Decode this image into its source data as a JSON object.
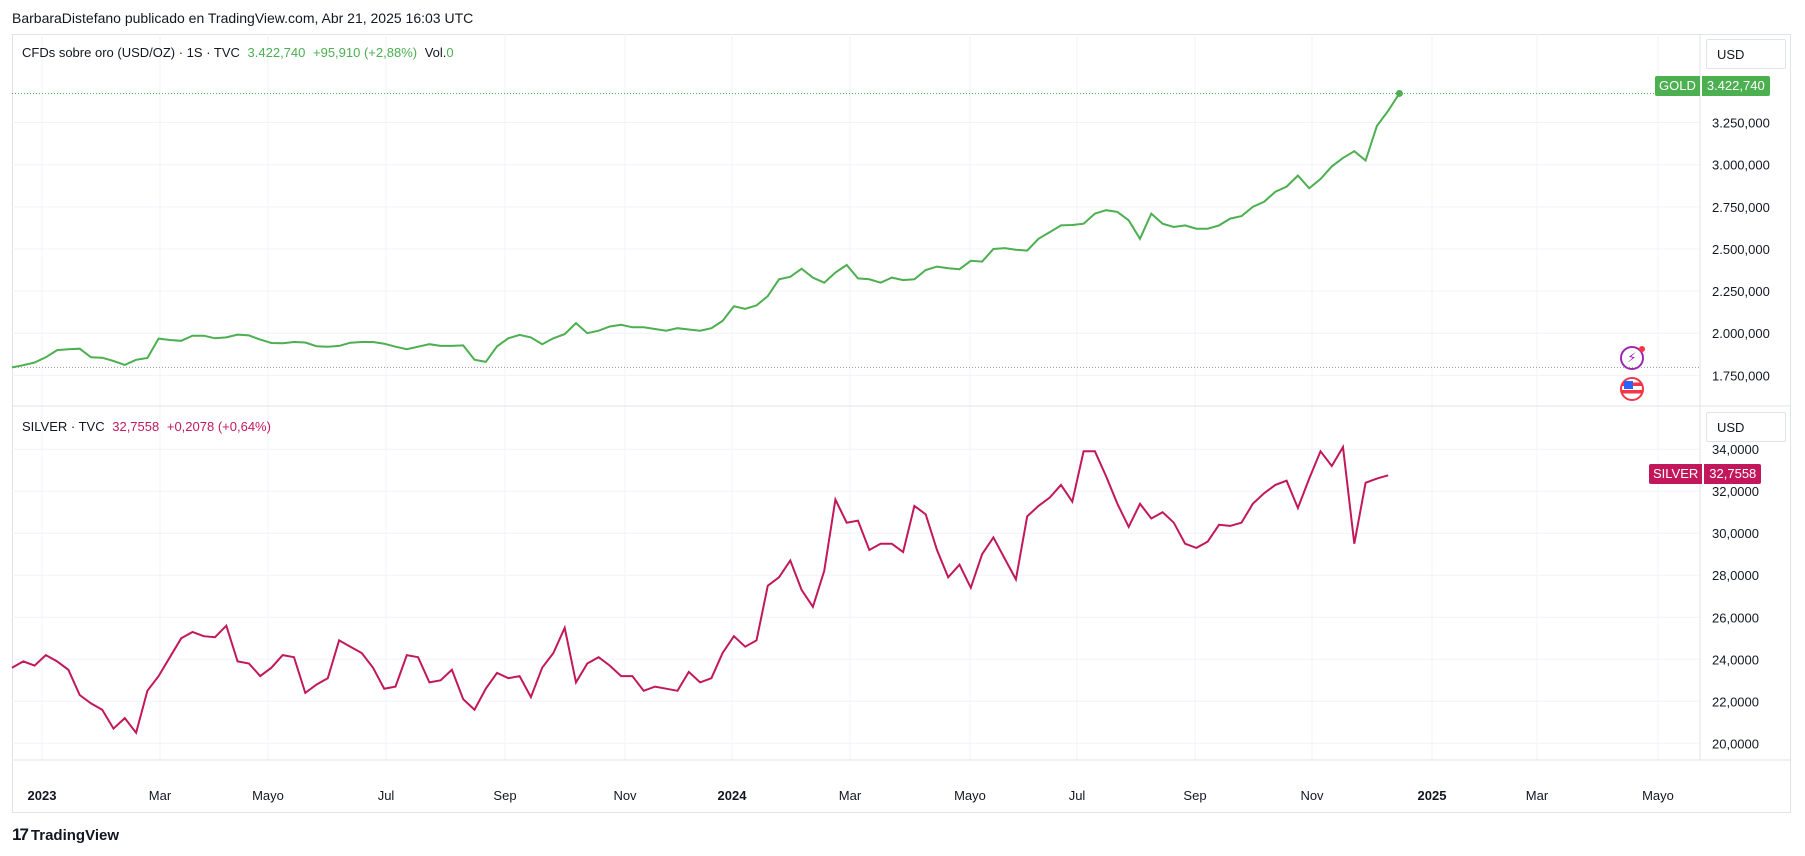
{
  "header": {
    "text": "BarbaraDistefano publicado en TradingView.com, Abr 21, 2025 16:03 UTC"
  },
  "footer": {
    "brand": "TradingView",
    "logo": "tradingview-logo-icon"
  },
  "colors": {
    "gold": "#4caf50",
    "silver": "#c2185b",
    "grid": "#f0f3fa",
    "text": "#131722"
  },
  "gold_legend": {
    "name": "CFDs sobre oro (USD/OZ) · 1S · TVC",
    "price": "3.422,740",
    "change": "+95,910 (+2,88%)",
    "vol_label": "Vol.",
    "vol_value": "0"
  },
  "silver_legend": {
    "name": "SILVER · TVC",
    "price": "32,7558",
    "change": "+0,2078 (+0,64%)"
  },
  "currency_gold": "USD",
  "currency_silver": "USD",
  "gold_tag": {
    "name": "GOLD",
    "value": "3.422,740"
  },
  "silver_tag": {
    "name": "SILVER",
    "value": "32,7558"
  },
  "icons": {
    "events": [
      "lightning-event-icon",
      "us-flag-event-icon"
    ]
  },
  "chart_data": [
    {
      "type": "line",
      "series": [
        {
          "name": "GOLD",
          "color": "#4caf50",
          "values": [
            1797,
            1810,
            1826,
            1857,
            1900,
            1905,
            1908,
            1857,
            1855,
            1835,
            1812,
            1842,
            1853,
            1968,
            1960,
            1955,
            1985,
            1985,
            1970,
            1975,
            1992,
            1987,
            1962,
            1942,
            1940,
            1948,
            1945,
            1923,
            1920,
            1925,
            1944,
            1948,
            1948,
            1938,
            1920,
            1905,
            1920,
            1935,
            1925,
            1925,
            1928,
            1843,
            1830,
            1922,
            1970,
            1990,
            1975,
            1935,
            1970,
            1995,
            2060,
            2000,
            2015,
            2040,
            2050,
            2035,
            2035,
            2025,
            2015,
            2030,
            2022,
            2015,
            2030,
            2073,
            2160,
            2145,
            2165,
            2220,
            2320,
            2335,
            2383,
            2330,
            2300,
            2360,
            2405,
            2325,
            2320,
            2300,
            2330,
            2315,
            2320,
            2375,
            2395,
            2385,
            2380,
            2430,
            2425,
            2500,
            2505,
            2495,
            2490,
            2560,
            2600,
            2640,
            2642,
            2650,
            2710,
            2730,
            2720,
            2670,
            2560,
            2710,
            2650,
            2630,
            2640,
            2620,
            2620,
            2640,
            2680,
            2695,
            2750,
            2780,
            2840,
            2870,
            2935,
            2860,
            2915,
            2990,
            3040,
            3080,
            3025,
            3230,
            3320,
            3422.74
          ]
        }
      ],
      "xlabels": [
        "2023",
        "Mar",
        "Mayo",
        "Jul",
        "Sep",
        "Nov",
        "2024",
        "Mar",
        "Mayo",
        "Jul",
        "Sep",
        "Nov",
        "2025",
        "Mar",
        "Mayo"
      ],
      "ylabels": [
        "1.750,000",
        "2.000,000",
        "2.250,000",
        "2.500,000",
        "2.750,000",
        "3.000,000",
        "3.250,000"
      ],
      "ylim": [
        1580,
        3550
      ]
    },
    {
      "type": "line",
      "series": [
        {
          "name": "SILVER",
          "color": "#c2185b",
          "values": [
            23.6,
            23.9,
            23.7,
            24.2,
            23.9,
            23.5,
            22.3,
            21.9,
            21.6,
            20.7,
            21.2,
            20.5,
            22.5,
            23.2,
            24.1,
            25,
            25.3,
            25.1,
            25.05,
            25.6,
            23.9,
            23.8,
            23.2,
            23.6,
            24.2,
            24.1,
            22.4,
            22.8,
            23.1,
            24.9,
            24.6,
            24.3,
            23.6,
            22.6,
            22.7,
            24.2,
            24.1,
            22.9,
            23,
            23.5,
            22.1,
            21.6,
            22.6,
            23.35,
            23.1,
            23.2,
            22.2,
            23.6,
            24.3,
            25.5,
            22.9,
            23.8,
            24.1,
            23.7,
            23.2,
            23.2,
            22.5,
            22.7,
            22.6,
            22.5,
            23.4,
            22.9,
            23.1,
            24.3,
            25.1,
            24.6,
            24.9,
            27.5,
            27.9,
            28.7,
            27.3,
            26.5,
            28.2,
            31.6,
            30.5,
            30.6,
            29.2,
            29.5,
            29.5,
            29.1,
            31.3,
            30.9,
            29.2,
            27.9,
            28.5,
            27.4,
            29,
            29.8,
            28.8,
            27.8,
            30.8,
            31.3,
            31.7,
            32.3,
            31.5,
            33.9,
            33.9,
            32.7,
            31.4,
            30.3,
            31.4,
            30.7,
            31,
            30.5,
            29.5,
            29.3,
            29.6,
            30.4,
            30.35,
            30.5,
            31.4,
            31.9,
            32.3,
            32.5,
            31.2,
            32.6,
            33.9,
            33.2,
            34.1,
            29.5,
            32.4,
            32.6,
            32.7558
          ]
        }
      ],
      "ylabels": [
        "20,0000",
        "22,0000",
        "24,0000",
        "26,0000",
        "28,0000",
        "30,0000",
        "32,0000",
        "34,0000"
      ],
      "ylim": [
        19.3,
        34.2
      ]
    }
  ]
}
